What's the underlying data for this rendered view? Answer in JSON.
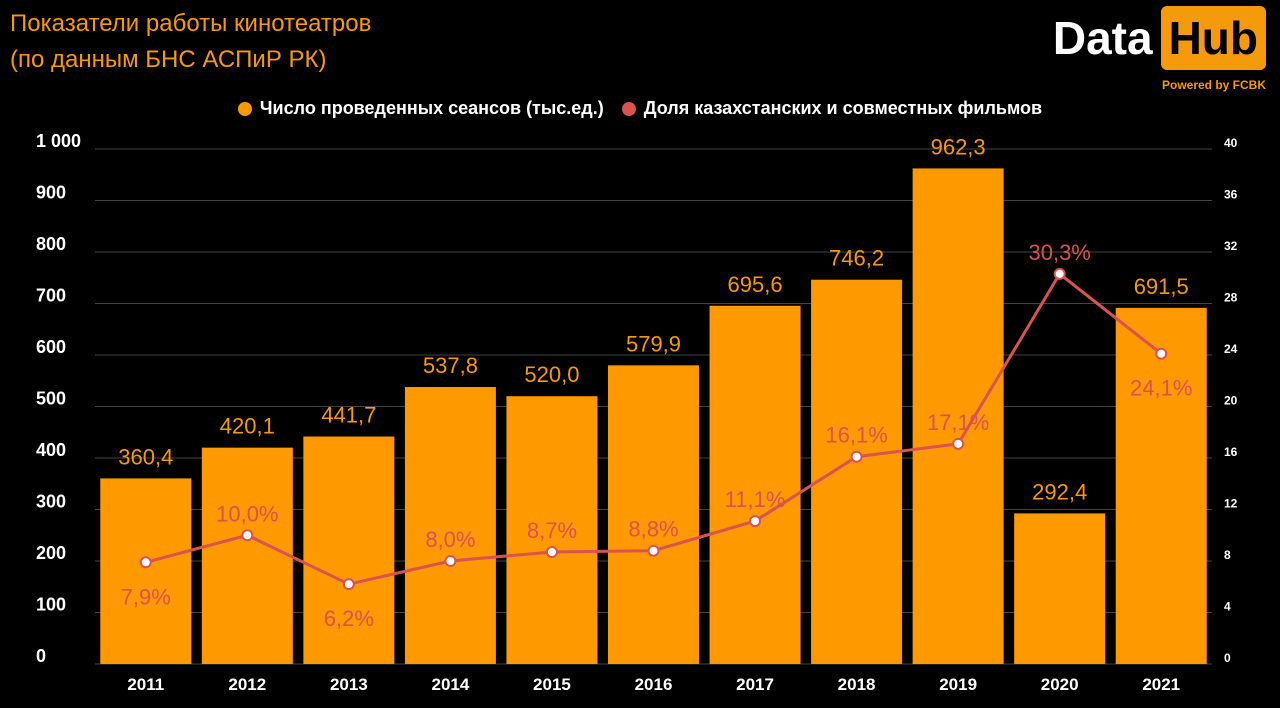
{
  "header": {
    "title_line1": "Показатели работы кинотеатров",
    "title_line2": "(по данным БНС АСПиР РК)"
  },
  "logo": {
    "data_text": "Data",
    "hub_text": "Hub",
    "powered": "Powered by FCBK"
  },
  "colors": {
    "bar": "#ff9900",
    "line": "#d9534f",
    "grid": "#444444",
    "accent": "#f59a0b"
  },
  "chart_data": {
    "type": "bar",
    "categories": [
      "2011",
      "2012",
      "2013",
      "2014",
      "2015",
      "2016",
      "2017",
      "2018",
      "2019",
      "2020",
      "2021"
    ],
    "series": [
      {
        "name": "Число проведенных сеансов (тыс.ед.)",
        "type": "bar",
        "axis": "left",
        "values": [
          360.4,
          420.1,
          441.7,
          537.8,
          520.0,
          579.9,
          695.6,
          746.2,
          962.3,
          292.4,
          691.5
        ],
        "labels": [
          "360,4",
          "420,1",
          "441,7",
          "537,8",
          "520,0",
          "579,9",
          "695,6",
          "746,2",
          "962,3",
          "292,4",
          "691,5"
        ]
      },
      {
        "name": "Доля казахстанских и совместных фильмов",
        "type": "line",
        "axis": "right",
        "values": [
          7.9,
          10.0,
          6.2,
          8.0,
          8.7,
          8.8,
          11.1,
          16.1,
          17.1,
          30.3,
          24.1
        ],
        "labels": [
          "7,9%",
          "10,0%",
          "6,2%",
          "8,0%",
          "8,7%",
          "8,8%",
          "11,1%",
          "16,1%",
          "17,1%",
          "30,3%",
          "24,1%"
        ]
      }
    ],
    "y_left": {
      "ylim": [
        0,
        1000
      ],
      "ticks": [
        "0",
        "100",
        "200",
        "300",
        "400",
        "500",
        "600",
        "700",
        "800",
        "900",
        "1 000"
      ]
    },
    "y_right": {
      "ylim": [
        0,
        40
      ],
      "ticks": [
        "0",
        "4",
        "8",
        "12",
        "16",
        "20",
        "24",
        "28",
        "32",
        "36",
        "40"
      ]
    },
    "grid": true,
    "legend_position": "top"
  }
}
